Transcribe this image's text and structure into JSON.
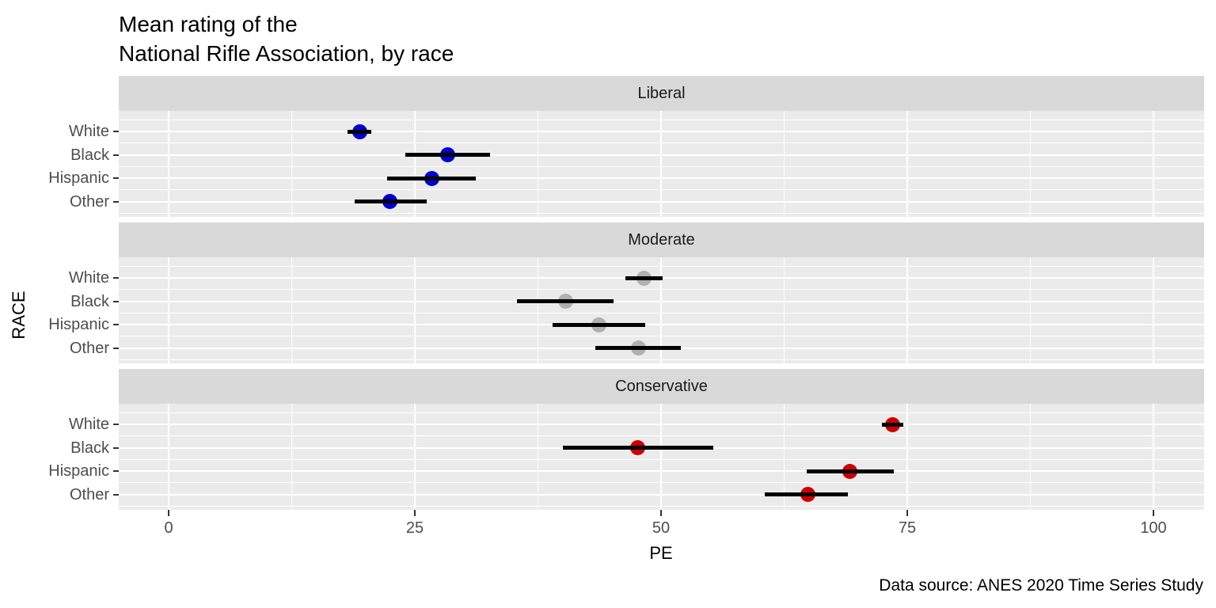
{
  "chart_data": {
    "type": "pointrange",
    "title": "Mean rating of the\nNational Rifle Association, by race",
    "xlabel": "PE",
    "ylabel": "RACE",
    "caption": "Data source: ANES 2020 Time Series Study",
    "x_ticks": [
      0,
      25,
      50,
      75,
      100
    ],
    "x_minor": [
      12.5,
      37.5,
      62.5,
      87.5
    ],
    "x_range": [
      -5.1,
      105.1
    ],
    "categories": [
      "White",
      "Black",
      "Hispanic",
      "Other"
    ],
    "legend_position": "none",
    "grid": "white major and minor gridlines on gray panels",
    "facets": [
      {
        "label": "Liberal",
        "color": "#0000CD",
        "points": [
          {
            "race": "White",
            "pe": 19.4,
            "lo": 18.2,
            "hi": 20.6
          },
          {
            "race": "Black",
            "pe": 28.3,
            "lo": 24.0,
            "hi": 32.6
          },
          {
            "race": "Hispanic",
            "pe": 26.7,
            "lo": 22.2,
            "hi": 31.2
          },
          {
            "race": "Other",
            "pe": 22.5,
            "lo": 18.9,
            "hi": 26.2
          }
        ]
      },
      {
        "label": "Moderate",
        "color": "#B0B0B0",
        "points": [
          {
            "race": "White",
            "pe": 48.3,
            "lo": 46.4,
            "hi": 50.2
          },
          {
            "race": "Black",
            "pe": 40.3,
            "lo": 35.4,
            "hi": 45.2
          },
          {
            "race": "Hispanic",
            "pe": 43.7,
            "lo": 39.0,
            "hi": 48.4
          },
          {
            "race": "Other",
            "pe": 47.7,
            "lo": 43.3,
            "hi": 52.0
          }
        ]
      },
      {
        "label": "Conservative",
        "color": "#CC0000",
        "points": [
          {
            "race": "White",
            "pe": 73.5,
            "lo": 72.4,
            "hi": 74.6
          },
          {
            "race": "Black",
            "pe": 47.6,
            "lo": 40.0,
            "hi": 55.3
          },
          {
            "race": "Hispanic",
            "pe": 69.2,
            "lo": 64.8,
            "hi": 73.6
          },
          {
            "race": "Other",
            "pe": 64.9,
            "lo": 60.5,
            "hi": 69.0
          }
        ]
      }
    ],
    "colors": {
      "background": "#FFFFFF",
      "panel_bg": "#EBEBEB",
      "strip_bg": "#D9D9D9",
      "gridline": "#FFFFFF",
      "axis_text": "#4D4D4D",
      "tick_mark": "#333333",
      "errorbar": "#000000",
      "title_text": "#000000"
    }
  }
}
